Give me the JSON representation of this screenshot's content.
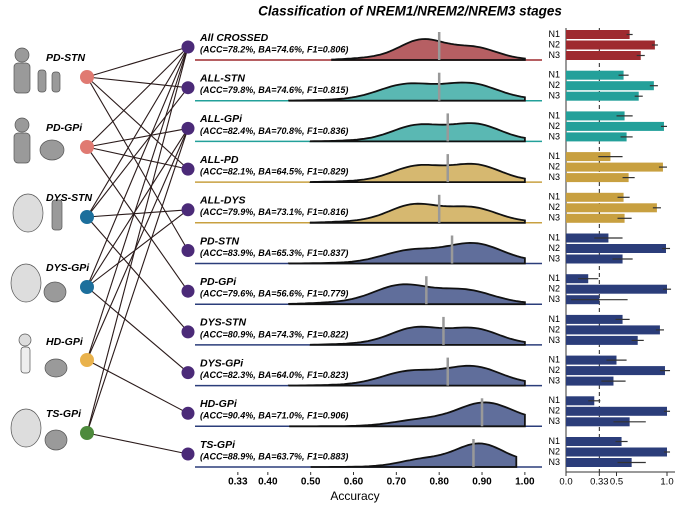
{
  "title": "Classification of NREM1/NREM2/NREM3 stages",
  "sources": [
    {
      "label": "PD-STN",
      "color": "#e07a72"
    },
    {
      "label": "PD-GPi",
      "color": "#e07a72"
    },
    {
      "label": "DYS-STN",
      "color": "#1c6f9c"
    },
    {
      "label": "DYS-GPi",
      "color": "#1c6f9c"
    },
    {
      "label": "HD-GPi",
      "color": "#e9b24c"
    },
    {
      "label": "TS-GPi",
      "color": "#4d8a3c"
    }
  ],
  "chart_data": {
    "type": "ridgeline",
    "xlabel": "Accuracy",
    "xlim": [
      0.23,
      1.04
    ],
    "xticks": [
      0.33,
      {
        "value": 0.4,
        "label": "0.40"
      },
      {
        "value": 0.5,
        "label": "0.50"
      },
      {
        "value": 0.6,
        "label": "0.60"
      },
      {
        "value": 0.7,
        "label": "0.70"
      },
      {
        "value": 0.8,
        "label": "0.80"
      },
      {
        "value": 0.9,
        "label": "0.90"
      },
      {
        "value": 1,
        "label": "1.00"
      }
    ],
    "stages": [
      "N1",
      "N2",
      "N3"
    ],
    "bar_xlim": [
      0,
      1.1
    ],
    "bar_xticks": [
      {
        "value": 0,
        "label": "0.0"
      },
      0.33,
      0.5,
      {
        "value": 1,
        "label": "1.0"
      }
    ],
    "rows": [
      {
        "name": "All CROSSED",
        "metrics": "(ACC=78.2%, BA=74.6%, F1=0.806)",
        "color": "#9e2a2f",
        "sources": [
          0,
          1,
          2,
          3,
          4,
          5
        ],
        "mean": 0.8,
        "range": [
          0.55,
          1.0
        ],
        "values": [
          0.63,
          0.88,
          0.74
        ],
        "errors": [
          0.03,
          0.03,
          0.04
        ]
      },
      {
        "name": "ALL-STN",
        "metrics": "(ACC=79.8%, BA=74.6%, F1=0.815)",
        "color": "#23a09a",
        "sources": [
          0,
          2
        ],
        "mean": 0.8,
        "range": [
          0.45,
          1.0
        ],
        "values": [
          0.57,
          0.87,
          0.72
        ],
        "errors": [
          0.05,
          0.04,
          0.04
        ]
      },
      {
        "name": "ALL-GPi",
        "metrics": "(ACC=82.4%, BA=70.8%, F1=0.836)",
        "color": "#23a09a",
        "sources": [
          1,
          3,
          4,
          5
        ],
        "mean": 0.82,
        "range": [
          0.5,
          1.0
        ],
        "values": [
          0.58,
          0.97,
          0.6
        ],
        "errors": [
          0.08,
          0.03,
          0.06
        ]
      },
      {
        "name": "ALL-PD",
        "metrics": "(ACC=82.1%, BA=64.5%, F1=0.829)",
        "color": "#c8a040",
        "sources": [
          0,
          1
        ],
        "mean": 0.82,
        "range": [
          0.5,
          1.0
        ],
        "values": [
          0.44,
          0.96,
          0.62
        ],
        "errors": [
          0.12,
          0.04,
          0.06
        ]
      },
      {
        "name": "ALL-DYS",
        "metrics": "(ACC=79.9%, BA=73.1%, F1=0.816)",
        "color": "#c8a040",
        "sources": [
          2,
          3
        ],
        "mean": 0.8,
        "range": [
          0.5,
          1.0
        ],
        "values": [
          0.57,
          0.9,
          0.58
        ],
        "errors": [
          0.06,
          0.04,
          0.07
        ]
      },
      {
        "name": "PD-STN",
        "metrics": "(ACC=83.9%, BA=65.3%, F1=0.837)",
        "color": "#2b3d7a",
        "sources": [
          0
        ],
        "mean": 0.83,
        "range": [
          0.45,
          1.0
        ],
        "values": [
          0.42,
          0.99,
          0.56
        ],
        "errors": [
          0.14,
          0.04,
          0.1
        ]
      },
      {
        "name": "PD-GPi",
        "metrics": "(ACC=79.6%, BA=56.6%, F1=0.779)",
        "color": "#2b3d7a",
        "sources": [
          1
        ],
        "mean": 0.77,
        "range": [
          0.45,
          1.0
        ],
        "values": [
          0.22,
          1.0,
          0.33
        ],
        "errors": [
          0.1,
          0.04,
          0.28
        ]
      },
      {
        "name": "DYS-STN",
        "metrics": "(ACC=80.9%, BA=74.3%, F1=0.822)",
        "color": "#2b3d7a",
        "sources": [
          2
        ],
        "mean": 0.81,
        "range": [
          0.5,
          1.0
        ],
        "values": [
          0.56,
          0.93,
          0.71
        ],
        "errors": [
          0.07,
          0.04,
          0.06
        ]
      },
      {
        "name": "DYS-GPi",
        "metrics": "(ACC=82.3%, BA=64.0%, F1=0.823)",
        "color": "#2b3d7a",
        "sources": [
          3
        ],
        "mean": 0.82,
        "range": [
          0.45,
          1.0
        ],
        "values": [
          0.5,
          0.98,
          0.47
        ],
        "errors": [
          0.1,
          0.05,
          0.12
        ]
      },
      {
        "name": "HD-GPi",
        "metrics": "(ACC=90.4%, BA=71.0%, F1=0.906)",
        "color": "#2b3d7a",
        "sources": [
          4
        ],
        "mean": 0.9,
        "range": [
          0.45,
          1.0
        ],
        "values": [
          0.28,
          1.0,
          0.63
        ],
        "errors": [
          0.06,
          0.03,
          0.16
        ]
      },
      {
        "name": "TS-GPi",
        "metrics": "(ACC=88.9%, BA=63.7%, F1=0.883)",
        "color": "#2b3d7a",
        "sources": [
          5
        ],
        "mean": 0.88,
        "range": [
          0.5,
          0.98
        ],
        "values": [
          0.55,
          1.0,
          0.65
        ],
        "errors": [
          0.06,
          0.03,
          0.14
        ]
      }
    ]
  }
}
